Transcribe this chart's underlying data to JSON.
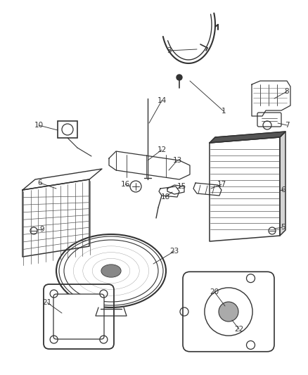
{
  "bg_color": "#ffffff",
  "line_color": "#333333",
  "fig_width": 4.38,
  "fig_height": 5.33,
  "dpi": 100
}
